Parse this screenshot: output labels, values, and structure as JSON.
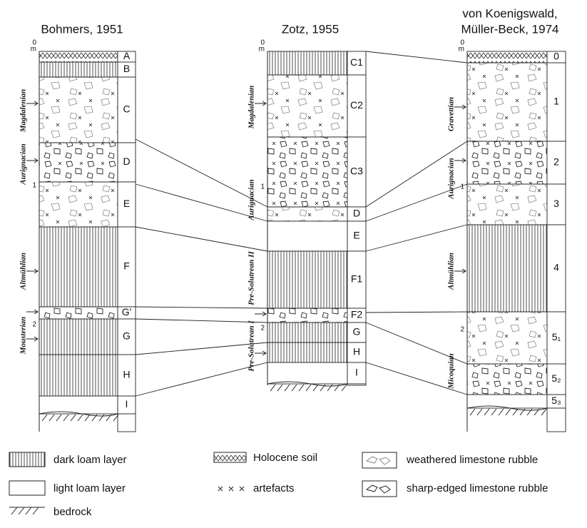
{
  "columns": [
    {
      "title": [
        "Bohmers, 1951"
      ],
      "scale": [
        "0",
        "m",
        "1",
        "2"
      ],
      "layers": [
        "A",
        "B",
        "C",
        "D",
        "E",
        "F",
        "G'",
        "G",
        "H",
        "I"
      ],
      "cultures": [
        "Magdalenian",
        "Aurignacian",
        "Altmühlian",
        "Mousterian"
      ]
    },
    {
      "title": [
        "Zotz, 1955"
      ],
      "scale": [
        "0",
        "m",
        "1",
        "2"
      ],
      "layers": [
        "C1",
        "C2",
        "C3",
        "D",
        "E",
        "F1",
        "F2",
        "G",
        "H",
        "I"
      ],
      "cultures": [
        "Magdalenian",
        "Aurignacian",
        "Pre-Solutrean II",
        "Pre-Solutrean I"
      ]
    },
    {
      "title": [
        "von Koenigswald,",
        "Müller-Beck, 1974"
      ],
      "scale": [
        "0",
        "m",
        "1",
        "2"
      ],
      "layers": [
        "0",
        "1",
        "2",
        "3",
        "4",
        "5₁",
        "5₂",
        "5₃"
      ],
      "cultures": [
        "Gravettian",
        "Aurignacian",
        "Altmühlian",
        "Micoquian"
      ]
    }
  ],
  "legend": [
    "dark loam layer",
    "Holocene soil",
    "weathered limestone rubble",
    "light loam layer",
    "artefacts",
    "sharp-edged limestone rubble",
    "bedrock"
  ]
}
